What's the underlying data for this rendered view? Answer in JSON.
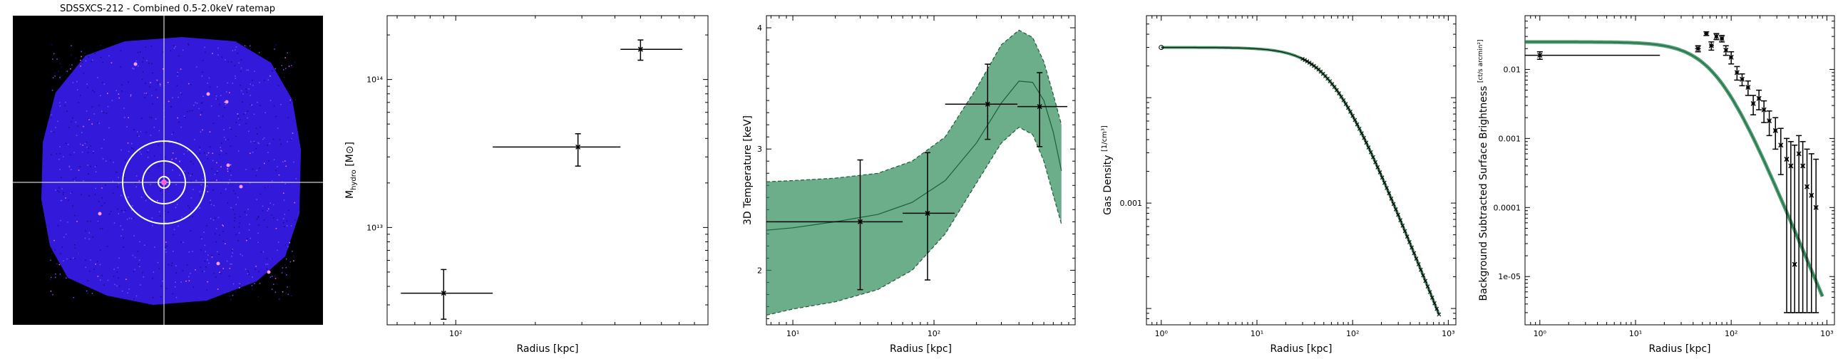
{
  "panels": {
    "ratemap": {
      "title": "SDSSXCS-212 - Combined 0.5-2.0keV ratemap",
      "background_color": "#000000",
      "source_color": "#3c1dff",
      "crosshair_color": "#ffffff",
      "aperture_color": "#ffffff",
      "ring_count": 3
    }
  },
  "chart_data": [
    {
      "type": "scatter",
      "xlabel": "Radius [kpc]",
      "ylabel_main": "M",
      "ylabel_sub": "hydro",
      "ylabel_unit": "[M⊙]",
      "xscale": "log",
      "yscale": "log",
      "xlim": [
        55,
        900
      ],
      "ylim": [
        2200000000000.0,
        270000000000000.0
      ],
      "xtick_labels": [
        {
          "v": 100,
          "t": "10²"
        }
      ],
      "ytick_labels": [
        {
          "v": 10000000000000.0,
          "t": "10¹³"
        },
        {
          "v": 100000000000000.0,
          "t": "10¹⁴"
        }
      ],
      "points": [
        {
          "x": 90,
          "y": 3600000000000.0,
          "xerr": [
            62,
            138
          ],
          "yerr": [
            2400000000000.0,
            5200000000000.0
          ]
        },
        {
          "x": 290,
          "y": 35000000000000.0,
          "xerr": [
            138,
            420
          ],
          "yerr": [
            26000000000000.0,
            43000000000000.0
          ]
        },
        {
          "x": 500,
          "y": 160000000000000.0,
          "xerr": [
            420,
            720
          ],
          "yerr": [
            135000000000000.0,
            185000000000000.0
          ]
        }
      ]
    },
    {
      "type": "line",
      "xlabel": "Radius [kpc]",
      "ylabel": "3D Temperature [keV]",
      "xscale": "log",
      "yscale": "linear",
      "xlim": [
        6.5,
        1000
      ],
      "ylim": [
        1.55,
        4.1
      ],
      "xtick_labels": [
        {
          "v": 10,
          "t": "10¹"
        },
        {
          "v": 100,
          "t": "10²"
        }
      ],
      "ytick_labels": [
        {
          "v": 2,
          "t": "2"
        },
        {
          "v": 3,
          "t": "3"
        },
        {
          "v": 4,
          "t": "4"
        }
      ],
      "fill_color": "#2e8b57",
      "band": {
        "x": [
          6.5,
          10,
          20,
          40,
          70,
          120,
          200,
          300,
          400,
          500,
          600,
          700,
          800
        ],
        "lower": [
          1.63,
          1.68,
          1.74,
          1.84,
          2.0,
          2.3,
          2.72,
          3.05,
          3.18,
          3.12,
          2.9,
          2.62,
          2.38
        ],
        "upper": [
          2.73,
          2.74,
          2.76,
          2.8,
          2.9,
          3.1,
          3.5,
          3.86,
          3.98,
          3.92,
          3.72,
          3.45,
          3.2
        ],
        "median": [
          2.33,
          2.35,
          2.4,
          2.46,
          2.56,
          2.74,
          3.05,
          3.38,
          3.56,
          3.55,
          3.4,
          3.14,
          2.82
        ]
      },
      "points": [
        {
          "x": 30,
          "y": 2.4,
          "xerr": [
            6.5,
            60
          ],
          "yerr": [
            1.84,
            2.91
          ]
        },
        {
          "x": 90,
          "y": 2.47,
          "xerr": [
            60,
            140
          ],
          "yerr": [
            1.92,
            2.97
          ]
        },
        {
          "x": 240,
          "y": 3.37,
          "xerr": [
            120,
            390
          ],
          "yerr": [
            3.08,
            3.7
          ]
        },
        {
          "x": 560,
          "y": 3.35,
          "xerr": [
            390,
            880
          ],
          "yerr": [
            3.02,
            3.63
          ]
        }
      ]
    },
    {
      "type": "line",
      "xlabel": "Radius [kpc]",
      "ylabel": "Gas Density",
      "ylabel_unit_num": "1",
      "ylabel_unit_den": "cm³",
      "xscale": "log",
      "yscale": "log",
      "xlim": [
        0.7,
        1200
      ],
      "ylim": [
        7e-05,
        0.06
      ],
      "xtick_labels": [
        {
          "v": 1,
          "t": "10⁰"
        },
        {
          "v": 10,
          "t": "10¹"
        },
        {
          "v": 100,
          "t": "10²"
        },
        {
          "v": 1000,
          "t": "10³"
        }
      ],
      "ytick_labels": [
        {
          "v": 0.001,
          "t": "0.001"
        }
      ],
      "line_color": "#2e8b57",
      "model": {
        "n0": 0.03,
        "rc": 60,
        "beta": 0.75
      },
      "x_range": [
        1,
        800
      ]
    },
    {
      "type": "scatter",
      "xlabel": "Radius [kpc]",
      "ylabel": "Background Subtracted Surface Brightness",
      "ylabel_unit_num": "ct",
      "ylabel_unit_den": "s arcmin²",
      "xscale": "log",
      "yscale": "log",
      "xlim": [
        0.7,
        1200
      ],
      "ylim": [
        2e-06,
        0.06
      ],
      "xtick_labels": [
        {
          "v": 1,
          "t": "10⁰"
        },
        {
          "v": 10,
          "t": "10¹"
        },
        {
          "v": 100,
          "t": "10²"
        },
        {
          "v": 1000,
          "t": "10³"
        }
      ],
      "ytick_labels": [
        {
          "v": 0.01,
          "t": "0.01"
        },
        {
          "v": 0.001,
          "t": "0.001"
        },
        {
          "v": 0.0001,
          "t": "0.0001"
        },
        {
          "v": 1e-05,
          "t": "1e-05"
        }
      ],
      "line_color": "#2e8b57",
      "model": {
        "s0": 0.025,
        "rc": 70,
        "beta": 0.72
      },
      "x_range": [
        0.7,
        900
      ],
      "points": [
        {
          "x": 1,
          "y": 0.016,
          "xerr": [
            0.7,
            18
          ],
          "yerr": [
            0.014,
            0.018
          ]
        },
        {
          "x": 45,
          "y": 0.02,
          "xerr": [
            42,
            48
          ],
          "yerr": [
            0.018,
            0.022
          ]
        },
        {
          "x": 55,
          "y": 0.033,
          "xerr": [
            52,
            58
          ],
          "yerr": [
            0.031,
            0.035
          ]
        },
        {
          "x": 62,
          "y": 0.022,
          "xerr": [
            59,
            66
          ],
          "yerr": [
            0.019,
            0.025
          ]
        },
        {
          "x": 70,
          "y": 0.03,
          "xerr": [
            67,
            73
          ],
          "yerr": [
            0.027,
            0.033
          ]
        },
        {
          "x": 80,
          "y": 0.028,
          "xerr": [
            76,
            84
          ],
          "yerr": [
            0.025,
            0.031
          ]
        },
        {
          "x": 88,
          "y": 0.019,
          "xerr": [
            85,
            92
          ],
          "yerr": [
            0.016,
            0.022
          ]
        },
        {
          "x": 100,
          "y": 0.015,
          "xerr": [
            95,
            104
          ],
          "yerr": [
            0.012,
            0.018
          ]
        },
        {
          "x": 115,
          "y": 0.009,
          "xerr": [
            110,
            120
          ],
          "yerr": [
            0.007,
            0.011
          ]
        },
        {
          "x": 130,
          "y": 0.0072,
          "xerr": [
            125,
            136
          ],
          "yerr": [
            0.0058,
            0.0086
          ]
        },
        {
          "x": 150,
          "y": 0.0055,
          "xerr": [
            143,
            157
          ],
          "yerr": [
            0.0042,
            0.0068
          ]
        },
        {
          "x": 170,
          "y": 0.0032,
          "xerr": [
            163,
            177
          ],
          "yerr": [
            0.0022,
            0.0042
          ]
        },
        {
          "x": 195,
          "y": 0.0038,
          "xerr": [
            187,
            203
          ],
          "yerr": [
            0.0026,
            0.005
          ]
        },
        {
          "x": 220,
          "y": 0.0026,
          "xerr": [
            211,
            229
          ],
          "yerr": [
            0.0017,
            0.0035
          ]
        },
        {
          "x": 250,
          "y": 0.0018,
          "xerr": [
            240,
            260
          ],
          "yerr": [
            0.0011,
            0.0025
          ]
        },
        {
          "x": 290,
          "y": 0.0013,
          "xerr": [
            278,
            302
          ],
          "yerr": [
            0.0007,
            0.002
          ]
        },
        {
          "x": 330,
          "y": 0.0008,
          "xerr": [
            318,
            342
          ],
          "yerr": [
            0.0003,
            0.0014
          ]
        },
        {
          "x": 380,
          "y": 0.0005,
          "xerr": [
            366,
            394
          ],
          "yerr": [
            3e-06,
            0.001
          ]
        },
        {
          "x": 420,
          "y": 0.0004,
          "xerr": [
            405,
            435
          ],
          "yerr": [
            3e-06,
            0.0009
          ]
        },
        {
          "x": 460,
          "y": 1.5e-05,
          "xerr": [
            445,
            475
          ],
          "yerr": [
            3e-06,
            0.0008
          ]
        },
        {
          "x": 510,
          "y": 0.0006,
          "xerr": [
            492,
            528
          ],
          "yerr": [
            3e-06,
            0.0011
          ]
        },
        {
          "x": 560,
          "y": 0.0004,
          "xerr": [
            540,
            580
          ],
          "yerr": [
            3e-06,
            0.0009
          ]
        },
        {
          "x": 620,
          "y": 0.0002,
          "xerr": [
            598,
            642
          ],
          "yerr": [
            3e-06,
            0.0007
          ]
        },
        {
          "x": 690,
          "y": 0.00015,
          "xerr": [
            665,
            715
          ],
          "yerr": [
            3e-06,
            0.0006
          ]
        },
        {
          "x": 770,
          "y": 0.0001,
          "xerr": [
            740,
            800
          ],
          "yerr": [
            3e-06,
            0.0005
          ]
        }
      ]
    }
  ]
}
